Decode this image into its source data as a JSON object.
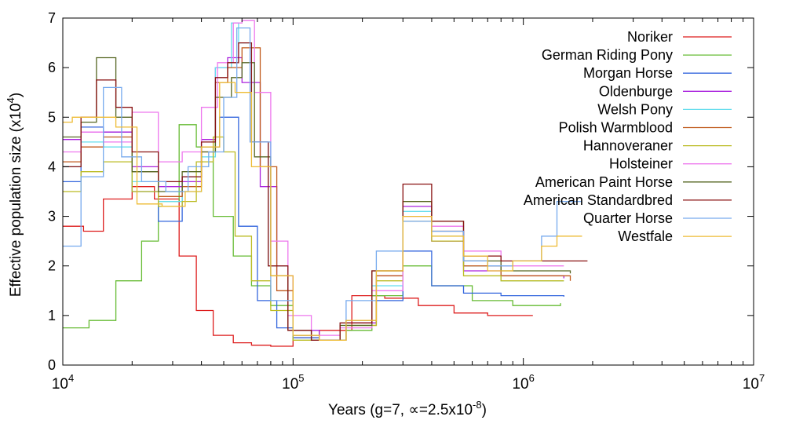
{
  "chart_data": {
    "type": "line",
    "step": true,
    "xscale": "log",
    "xlim": [
      10000,
      10000000
    ],
    "ylim": [
      0,
      7
    ],
    "xlabel": "Years (g=7, ∝=2.5x10",
    "xlabel_sup": "-8",
    "xlabel_end": ")",
    "ylabel": "Effective population size (x10",
    "ylabel_sup": "4",
    "ylabel_end": ")",
    "legend_position": "top-right",
    "grid": false,
    "x_ticks": [
      {
        "value": 10000,
        "base": "10",
        "exp": "4"
      },
      {
        "value": 100000,
        "base": "10",
        "exp": "5"
      },
      {
        "value": 1000000,
        "base": "10",
        "exp": "6"
      },
      {
        "value": 10000000,
        "base": "10",
        "exp": "7"
      }
    ],
    "y_ticks": [
      {
        "value": 0,
        "label": "0"
      },
      {
        "value": 1,
        "label": "1"
      },
      {
        "value": 2,
        "label": "2"
      },
      {
        "value": 3,
        "label": "3"
      },
      {
        "value": 4,
        "label": "4"
      },
      {
        "value": 5,
        "label": "5"
      },
      {
        "value": 6,
        "label": "6"
      },
      {
        "value": 7,
        "label": "7"
      }
    ],
    "series": [
      {
        "name": "Noriker",
        "color": "#dd1c1c",
        "x": [
          10000,
          12300,
          15000,
          20000,
          25000,
          32000,
          38000,
          45000,
          55000,
          66000,
          80000,
          100000,
          130000,
          180000,
          250000,
          350000,
          500000,
          700000,
          1100000
        ],
        "y": [
          2.8,
          2.7,
          3.35,
          3.6,
          3.35,
          2.2,
          1.1,
          0.6,
          0.45,
          0.4,
          0.38,
          0.55,
          0.7,
          1.4,
          1.35,
          1.2,
          1.05,
          1.0,
          1.0
        ]
      },
      {
        "name": "German Riding Pony",
        "color": "#66bb33",
        "x": [
          10000,
          13000,
          17000,
          22000,
          26000,
          32000,
          38000,
          45000,
          55000,
          66000,
          80000,
          100000,
          130000,
          170000,
          220000,
          300000,
          400000,
          600000,
          900000,
          1450000
        ],
        "y": [
          0.75,
          0.9,
          1.7,
          2.5,
          3.3,
          4.85,
          4.4,
          3.0,
          2.2,
          1.6,
          1.2,
          0.5,
          0.5,
          0.7,
          1.4,
          2.0,
          1.6,
          1.3,
          1.2,
          1.25
        ]
      },
      {
        "name": "Morgan Horse",
        "color": "#3366dd",
        "x": [
          10000,
          12000,
          15000,
          20000,
          26000,
          33000,
          40000,
          48000,
          58000,
          70000,
          85000,
          100000,
          130000,
          170000,
          230000,
          300000,
          400000,
          550000,
          800000,
          1500000
        ],
        "y": [
          3.7,
          4.8,
          4.7,
          3.5,
          2.9,
          3.8,
          4.4,
          5.0,
          2.8,
          1.3,
          0.75,
          0.55,
          0.5,
          0.9,
          1.3,
          2.3,
          1.6,
          1.45,
          1.4,
          1.38
        ]
      },
      {
        "name": "Oldenburge",
        "color": "#aa22dd",
        "x": [
          10000,
          12000,
          15000,
          20000,
          26000,
          33000,
          40000,
          46000,
          52000,
          60000,
          72000,
          85000,
          100000,
          130000,
          170000,
          230000,
          300000,
          400000,
          550000,
          800000,
          1500000
        ],
        "y": [
          4.55,
          4.7,
          4.7,
          4.0,
          3.6,
          3.7,
          4.55,
          6.0,
          6.2,
          5.7,
          3.6,
          1.8,
          0.7,
          0.5,
          0.85,
          1.8,
          3.2,
          2.5,
          1.9,
          1.8,
          1.75
        ]
      },
      {
        "name": "Welsh Pony",
        "color": "#66ddee",
        "x": [
          10000,
          12000,
          15000,
          20000,
          26000,
          33000,
          40000,
          46000,
          54000,
          58000,
          66000,
          78000,
          95000,
          120000,
          160000,
          220000,
          300000,
          400000,
          550000,
          800000,
          1500000
        ],
        "y": [
          4.0,
          4.5,
          4.4,
          3.7,
          3.3,
          3.5,
          4.2,
          6.0,
          6.9,
          6.5,
          4.5,
          2.0,
          0.7,
          0.5,
          0.8,
          1.6,
          3.1,
          2.6,
          2.0,
          1.7,
          1.7
        ]
      },
      {
        "name": "Polish Warmblood",
        "color": "#c05a1c",
        "x": [
          10000,
          12000,
          15000,
          20000,
          26000,
          33000,
          40000,
          46000,
          52000,
          60000,
          72000,
          85000,
          100000,
          130000,
          170000,
          230000,
          300000,
          400000,
          550000,
          800000,
          1600000
        ],
        "y": [
          4.1,
          4.4,
          4.6,
          3.9,
          3.4,
          3.6,
          4.3,
          5.7,
          6.0,
          6.4,
          4.0,
          1.5,
          0.6,
          0.5,
          0.8,
          1.8,
          3.3,
          2.7,
          2.0,
          1.8,
          1.7
        ]
      },
      {
        "name": "Hannoveraner",
        "color": "#bbbb22",
        "x": [
          10000,
          12000,
          15000,
          20000,
          26000,
          33000,
          38000,
          45000,
          50000,
          56000,
          66000,
          80000,
          100000,
          130000,
          170000,
          230000,
          300000,
          400000,
          550000,
          800000,
          1500000
        ],
        "y": [
          3.5,
          3.9,
          4.1,
          3.5,
          3.2,
          3.3,
          4.1,
          4.6,
          4.3,
          2.6,
          1.7,
          1.1,
          0.5,
          0.5,
          0.8,
          1.7,
          2.9,
          2.5,
          1.8,
          1.7,
          1.7
        ]
      },
      {
        "name": "Holsteiner",
        "color": "#ee77ee",
        "x": [
          10000,
          12000,
          15000,
          20000,
          26000,
          33000,
          40000,
          47000,
          55000,
          60000,
          68000,
          80000,
          95000,
          120000,
          160000,
          220000,
          300000,
          400000,
          550000,
          800000,
          1500000
        ],
        "y": [
          4.3,
          4.7,
          4.5,
          5.1,
          4.1,
          4.3,
          5.2,
          6.1,
          6.9,
          6.95,
          5.5,
          2.5,
          1.0,
          0.6,
          0.75,
          1.5,
          3.0,
          2.8,
          2.3,
          2.0,
          2.0
        ]
      },
      {
        "name": "American Paint Horse",
        "color": "#556622",
        "x": [
          10000,
          12000,
          14000,
          17000,
          20000,
          26000,
          33000,
          40000,
          46000,
          54000,
          60000,
          68000,
          80000,
          95000,
          120000,
          160000,
          220000,
          300000,
          400000,
          550000,
          800000,
          1600000
        ],
        "y": [
          4.6,
          4.9,
          6.2,
          5.0,
          3.9,
          3.5,
          3.9,
          4.3,
          5.4,
          5.8,
          6.1,
          4.2,
          1.8,
          0.7,
          0.5,
          0.8,
          1.9,
          3.3,
          2.9,
          2.1,
          1.9,
          1.85
        ]
      },
      {
        "name": "American Standardbred",
        "color": "#881111",
        "x": [
          10000,
          12000,
          14000,
          17000,
          20000,
          26000,
          33000,
          40000,
          46000,
          52000,
          58000,
          66000,
          78000,
          95000,
          120000,
          160000,
          220000,
          300000,
          400000,
          550000,
          800000,
          1900000
        ],
        "y": [
          4.0,
          5.0,
          5.75,
          5.2,
          4.3,
          3.7,
          3.8,
          4.5,
          5.8,
          6.1,
          6.5,
          4.5,
          2.0,
          0.7,
          0.5,
          0.85,
          1.9,
          3.65,
          2.9,
          2.2,
          2.1,
          2.1
        ]
      },
      {
        "name": "Quarter Horse",
        "color": "#77aaee",
        "x": [
          10000,
          12000,
          15000,
          18000,
          22000,
          28000,
          35000,
          43000,
          50000,
          57000,
          65000,
          80000,
          100000,
          130000,
          170000,
          230000,
          300000,
          400000,
          550000,
          700000,
          900000,
          1200000,
          1400000,
          1800000
        ],
        "y": [
          2.4,
          3.8,
          5.6,
          4.2,
          3.7,
          3.5,
          4.0,
          4.3,
          5.4,
          6.8,
          4.5,
          1.3,
          0.6,
          0.5,
          1.3,
          2.3,
          2.9,
          2.7,
          2.1,
          2.0,
          2.1,
          2.6,
          3.3,
          3.3
        ]
      },
      {
        "name": "Westfale",
        "color": "#eebb33",
        "x": [
          10000,
          11000,
          13000,
          17000,
          21000,
          27000,
          34000,
          40000,
          48000,
          56000,
          66000,
          80000,
          100000,
          130000,
          170000,
          230000,
          300000,
          400000,
          550000,
          700000,
          900000,
          1200000,
          1400000,
          1800000
        ],
        "y": [
          4.9,
          5.0,
          5.0,
          4.8,
          3.25,
          3.2,
          3.5,
          4.4,
          5.7,
          5.5,
          4.0,
          1.8,
          0.6,
          0.5,
          0.9,
          1.9,
          3.0,
          2.6,
          2.2,
          1.9,
          2.1,
          2.4,
          2.6,
          2.6
        ]
      }
    ]
  }
}
